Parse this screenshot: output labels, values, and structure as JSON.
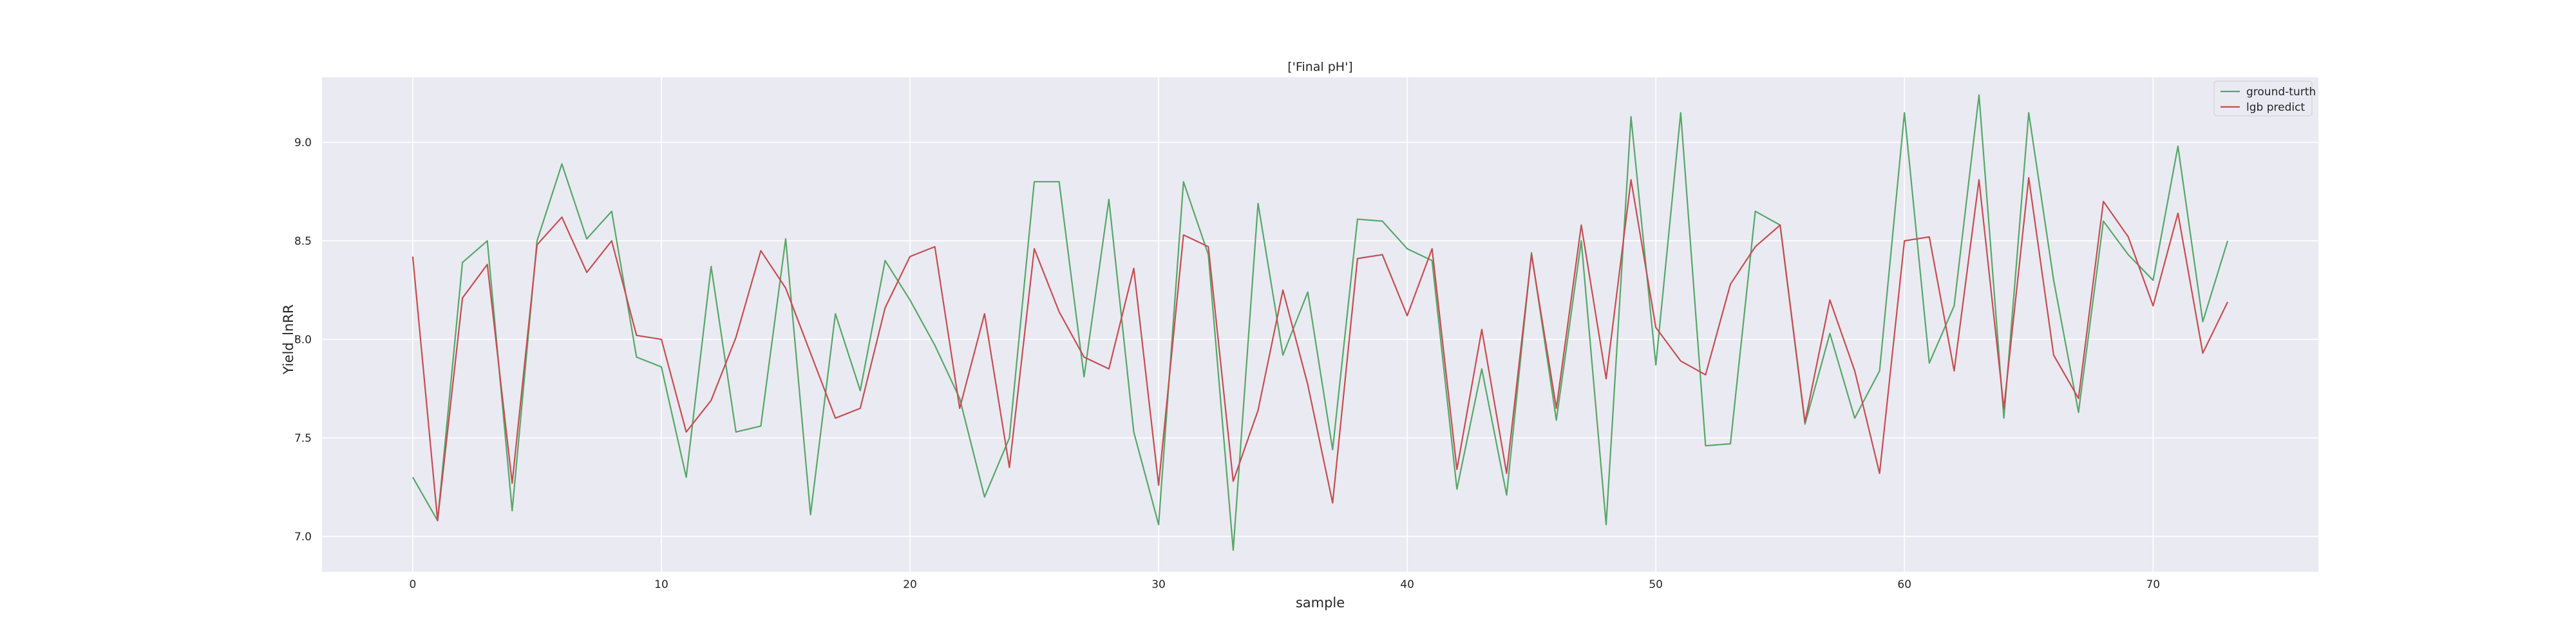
{
  "chart_data": {
    "type": "line",
    "title": "['Final pH']",
    "xlabel": "sample",
    "ylabel": "Yield_lnRR",
    "xlim": [
      -3.65,
      76.65
    ],
    "ylim": [
      6.82,
      9.33
    ],
    "xticks": [
      0,
      10,
      20,
      30,
      40,
      50,
      60,
      70
    ],
    "yticks": [
      7.0,
      7.5,
      8.0,
      8.5,
      9.0
    ],
    "xtick_labels": [
      "0",
      "10",
      "20",
      "30",
      "40",
      "50",
      "60",
      "70"
    ],
    "ytick_labels": [
      "7.0",
      "7.5",
      "8.0",
      "8.5",
      "9.0"
    ],
    "grid": true,
    "legend_position": "top-right",
    "x": [
      0,
      1,
      2,
      3,
      4,
      5,
      6,
      7,
      8,
      9,
      10,
      11,
      12,
      13,
      14,
      15,
      16,
      17,
      18,
      19,
      20,
      21,
      22,
      23,
      24,
      25,
      26,
      27,
      28,
      29,
      30,
      31,
      32,
      33,
      34,
      35,
      36,
      37,
      38,
      39,
      40,
      41,
      42,
      43,
      44,
      45,
      46,
      47,
      48,
      49,
      50,
      51,
      52,
      53,
      54,
      55,
      56,
      57,
      58,
      59,
      60,
      61,
      62,
      63,
      64,
      65,
      66,
      67,
      68,
      69,
      70,
      71,
      72,
      73
    ],
    "series": [
      {
        "name": "ground-turth",
        "color": "#55a868",
        "values": [
          7.3,
          7.08,
          8.39,
          8.5,
          7.13,
          8.5,
          8.89,
          8.51,
          8.65,
          7.91,
          7.86,
          7.3,
          8.37,
          7.53,
          7.56,
          8.51,
          7.11,
          8.13,
          7.74,
          8.4,
          8.2,
          7.97,
          7.7,
          7.2,
          7.5,
          8.8,
          8.8,
          7.81,
          8.71,
          7.53,
          7.06,
          8.8,
          8.43,
          6.93,
          8.69,
          7.92,
          8.24,
          7.44,
          8.61,
          8.6,
          8.46,
          8.4,
          7.24,
          7.85,
          7.21,
          8.44,
          7.59,
          8.5,
          7.06,
          9.13,
          7.87,
          9.15,
          7.46,
          7.47,
          8.65,
          8.58,
          7.57,
          8.03,
          7.6,
          7.84,
          9.15,
          7.88,
          8.17,
          9.24,
          7.6,
          9.15,
          8.3,
          7.63,
          8.6,
          8.43,
          8.3,
          8.98,
          8.09,
          8.5
        ]
      },
      {
        "name": "lgb predict",
        "color": "#c44e52",
        "values": [
          8.42,
          7.08,
          8.21,
          8.38,
          7.27,
          8.48,
          8.62,
          8.34,
          8.5,
          8.02,
          8.0,
          7.53,
          7.69,
          8.01,
          8.45,
          8.26,
          7.93,
          7.6,
          7.65,
          8.16,
          8.42,
          8.47,
          7.65,
          8.13,
          7.35,
          8.46,
          8.14,
          7.91,
          7.85,
          8.36,
          7.26,
          8.53,
          8.47,
          7.28,
          7.64,
          8.25,
          7.77,
          7.17,
          8.41,
          8.43,
          8.12,
          8.46,
          7.34,
          8.05,
          7.32,
          8.43,
          7.65,
          8.58,
          7.8,
          8.81,
          8.06,
          7.89,
          7.82,
          8.28,
          8.47,
          8.58,
          7.58,
          8.2,
          7.84,
          7.32,
          8.5,
          8.52,
          7.84,
          8.81,
          7.65,
          8.82,
          7.92,
          7.7,
          8.7,
          8.52,
          8.17,
          8.64,
          7.93,
          8.19
        ]
      }
    ]
  }
}
